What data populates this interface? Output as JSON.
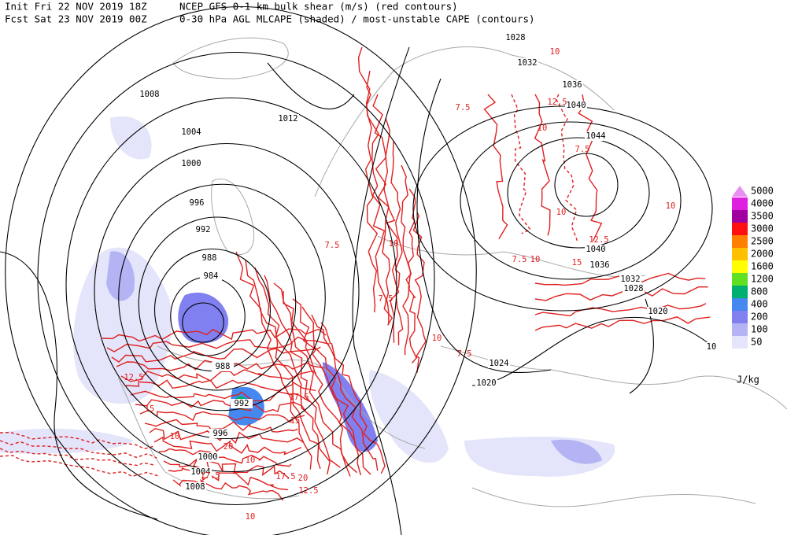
{
  "header": {
    "init": "Init  Fri 22 NOV 2019 18Z",
    "fcst": "Fcst Sat 23 NOV 2019 00Z",
    "title1": "NCEP GFS 0-1 km bulk shear (m/s) (red contours)",
    "title2": "0-30 hPa AGL MLCAPE (shaded) / most-unstable CAPE (contours)"
  },
  "legend": {
    "unit": "J/kg",
    "items": [
      {
        "label": "5000",
        "color": "#e890f0"
      },
      {
        "label": "4000",
        "color": "#e020e0"
      },
      {
        "label": "3500",
        "color": "#a000a0"
      },
      {
        "label": "3000",
        "color": "#ff1010"
      },
      {
        "label": "2500",
        "color": "#ff8000"
      },
      {
        "label": "2000",
        "color": "#ffc000"
      },
      {
        "label": "1600",
        "color": "#ffff00"
      },
      {
        "label": "1200",
        "color": "#60e020"
      },
      {
        "label": "800",
        "color": "#00b070"
      },
      {
        "label": "400",
        "color": "#4488f0"
      },
      {
        "label": "200",
        "color": "#8080f0"
      },
      {
        "label": "100",
        "color": "#b4b4f4"
      },
      {
        "label": "50",
        "color": "#e4e4fa"
      }
    ]
  },
  "isobar_labels": [
    "1028",
    "1032",
    "1036",
    "1040",
    "1044",
    "1012",
    "1008",
    "1004",
    "1000",
    "996",
    "992",
    "988",
    "984",
    "988",
    "992",
    "996",
    "1000",
    "1004",
    "1008",
    "1040",
    "1036",
    "1032",
    "1028",
    "1020",
    "1024",
    "1020",
    "10"
  ],
  "shear_labels": [
    "10",
    "7.5",
    "10",
    "12.5",
    "10",
    "7.5",
    "10",
    "12.5",
    "15",
    "7.5",
    "10",
    "12.5",
    "15",
    "17.5",
    "20",
    "15",
    "10",
    "17.5",
    "10",
    "20",
    "12.5",
    "10",
    "7.5",
    "10",
    "7.5",
    "7.5",
    "10",
    "17.5"
  ]
}
